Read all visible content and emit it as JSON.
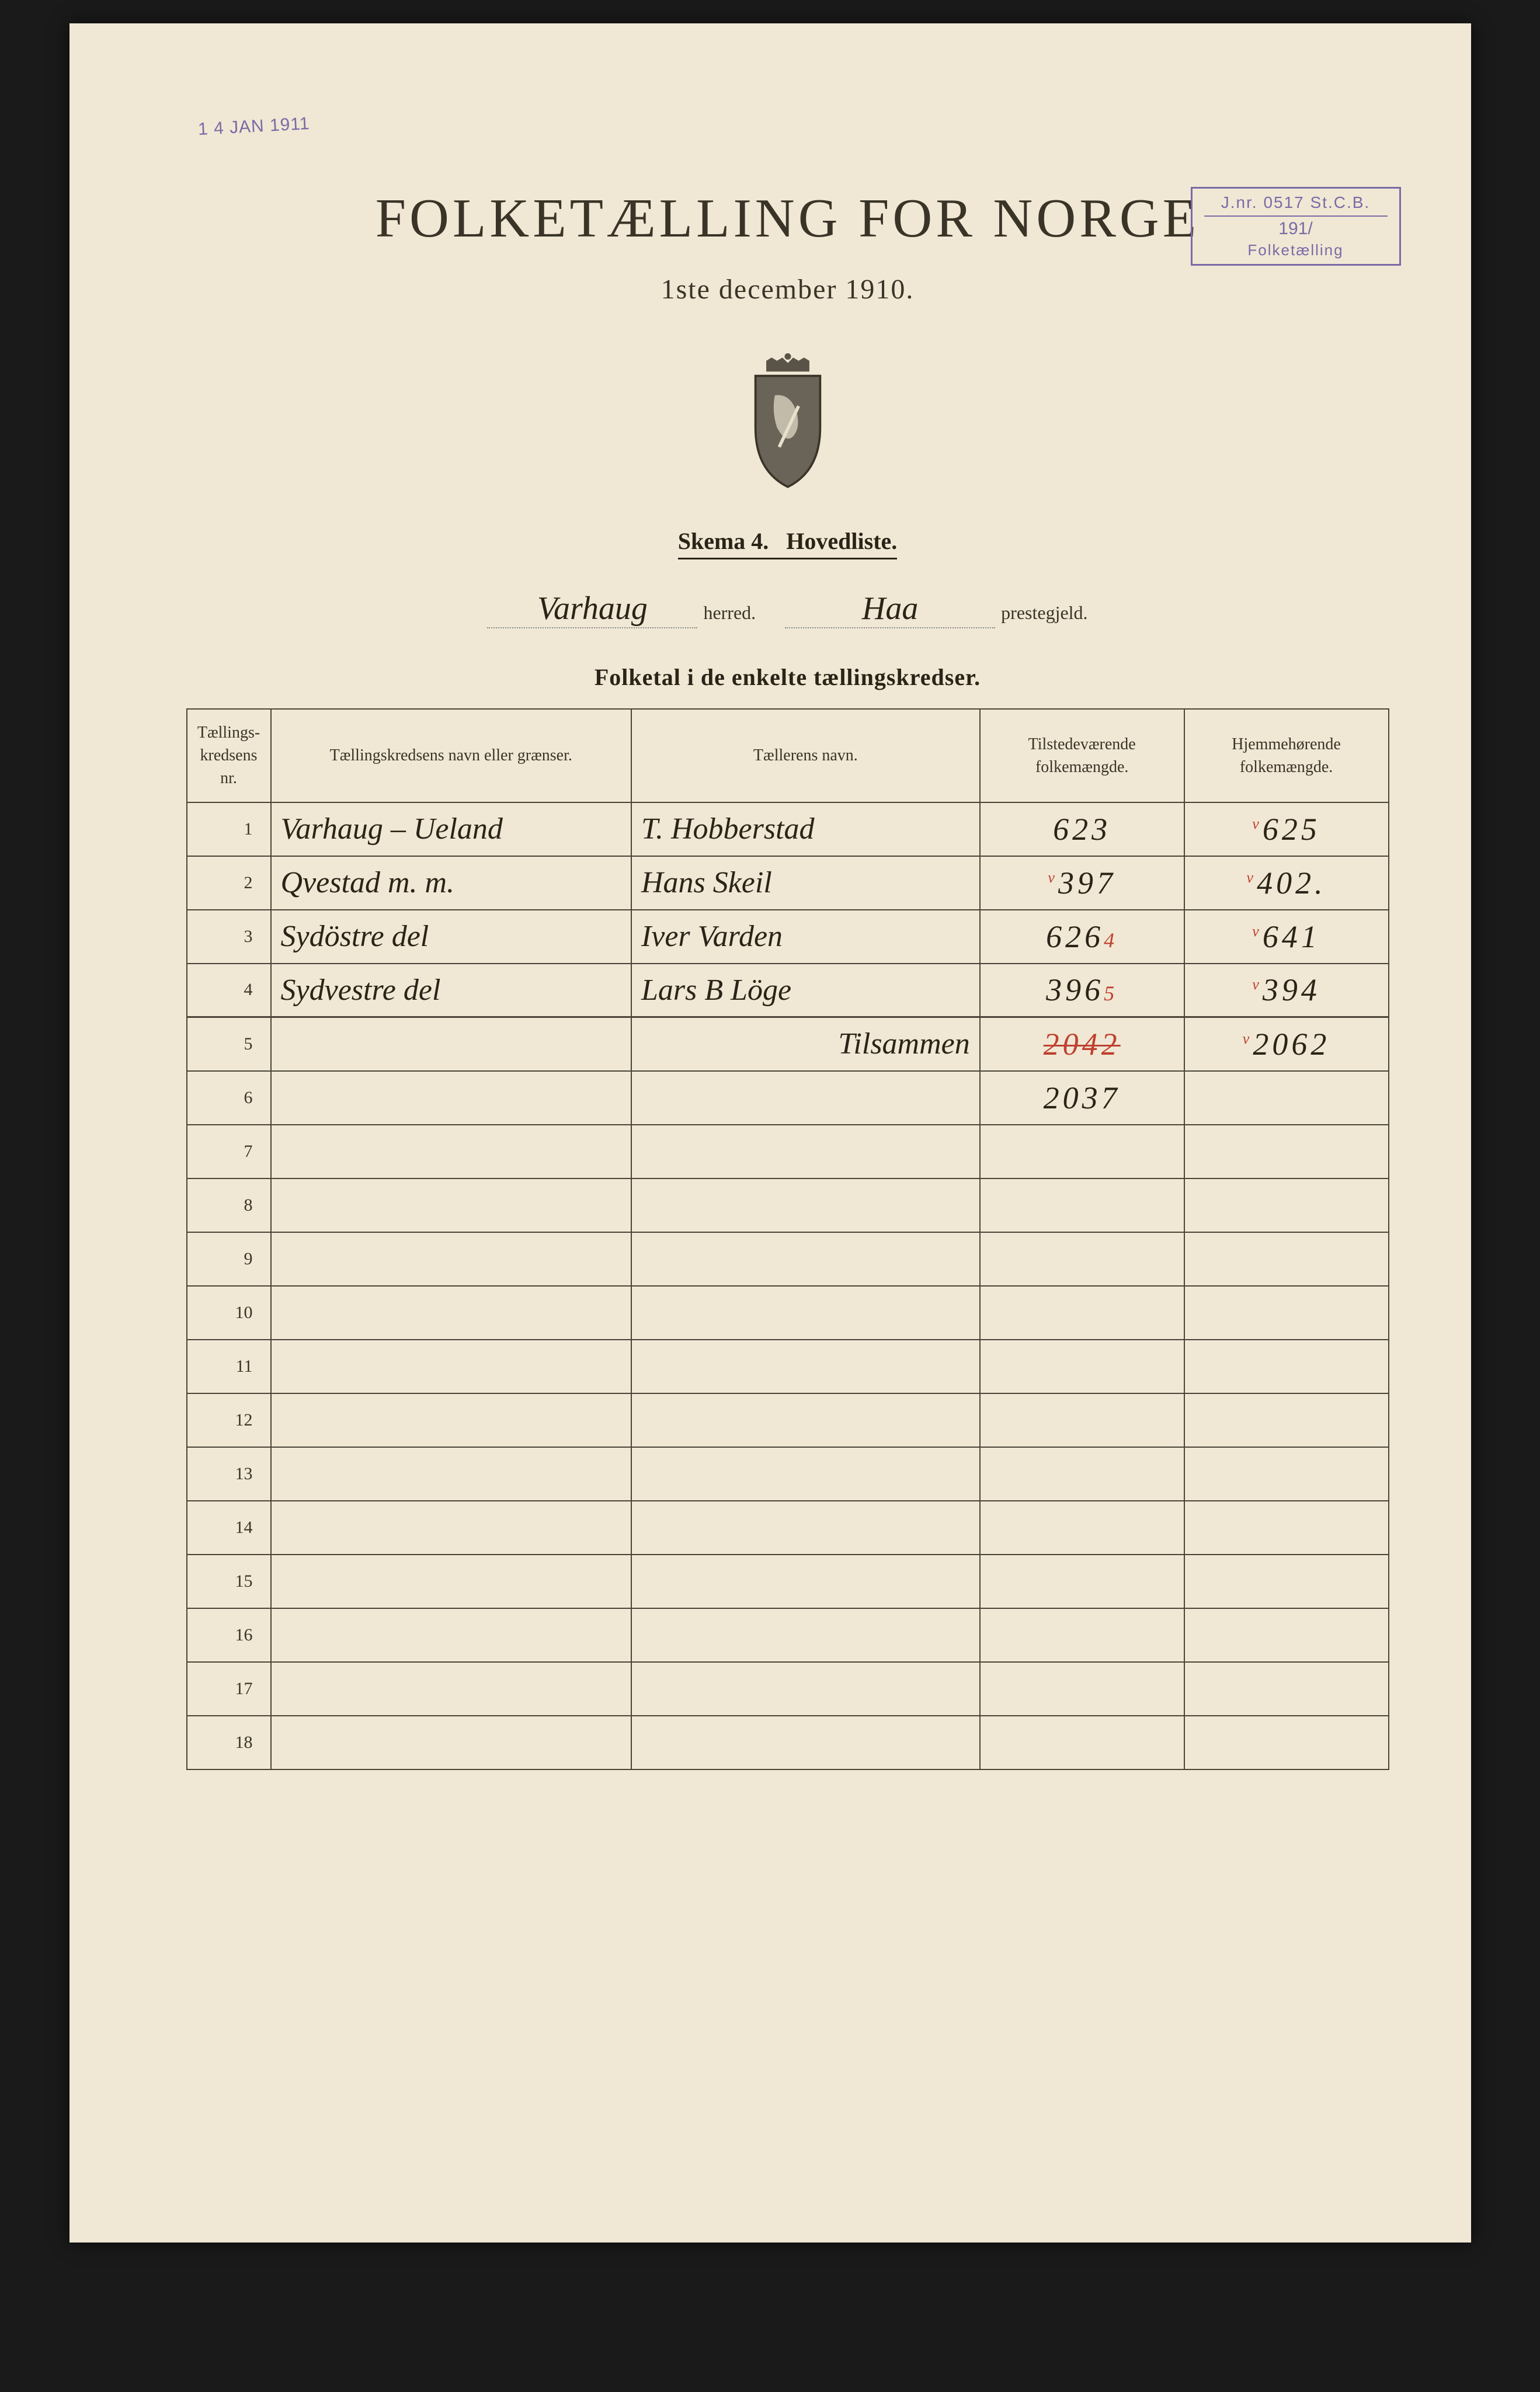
{
  "dateStamp": "1 4 JAN 1911",
  "receiptStamp": {
    "top": "J.nr. 0517 St.C.B.",
    "mid": "191/",
    "bot": "Folketælling"
  },
  "title": "FOLKETÆLLING FOR NORGE",
  "subtitle": "1ste december 1910.",
  "skemaLabel": "Skema 4.",
  "hovedliste": "Hovedliste.",
  "herred": "Varhaug",
  "herredLabel": "herred.",
  "prestegjeld": "Haa",
  "prestegjeldLabel": "prestegjeld.",
  "folketalHeader": "Folketal i de enkelte tællingskredser.",
  "columns": {
    "nr": "Tællings-\nkredsens nr.",
    "name": "Tællingskredsens navn eller grænser.",
    "taller": "Tællerens navn.",
    "tilst": "Tilstedeværende\nfolkemængde.",
    "hjem": "Hjemmehørende\nfolkemængde."
  },
  "rows": [
    {
      "nr": "1",
      "name": "Varhaug – Ueland",
      "taller": "T. Hobberstad",
      "tilst": "623",
      "hjem": "625",
      "tick": true
    },
    {
      "nr": "2",
      "name": "Qvestad m. m.",
      "taller": "Hans Skeil",
      "tilst": "397",
      "hjem": "402.",
      "tilstTick": true,
      "tick": true
    },
    {
      "nr": "3",
      "name": "Sydöstre del",
      "taller": "Iver Varden",
      "tilst": "626",
      "hjem": "641",
      "tilstCorr": "4",
      "tick": true
    },
    {
      "nr": "4",
      "name": "Sydvestre del",
      "taller": "Lars B Löge",
      "tilst": "396",
      "hjem": "394",
      "tilstCorr": "5",
      "tick": true
    }
  ],
  "sum": {
    "label": "Tilsammen",
    "tilst": "2042",
    "tilstStrike": true,
    "hjem": "2062"
  },
  "correction": "2037",
  "emptyRows": [
    "7",
    "8",
    "9",
    "10",
    "11",
    "12",
    "13",
    "14",
    "15",
    "16",
    "17",
    "18"
  ],
  "crestColors": {
    "shield": "#6a6458",
    "crown": "#5a5448",
    "outline": "#3a3428"
  }
}
